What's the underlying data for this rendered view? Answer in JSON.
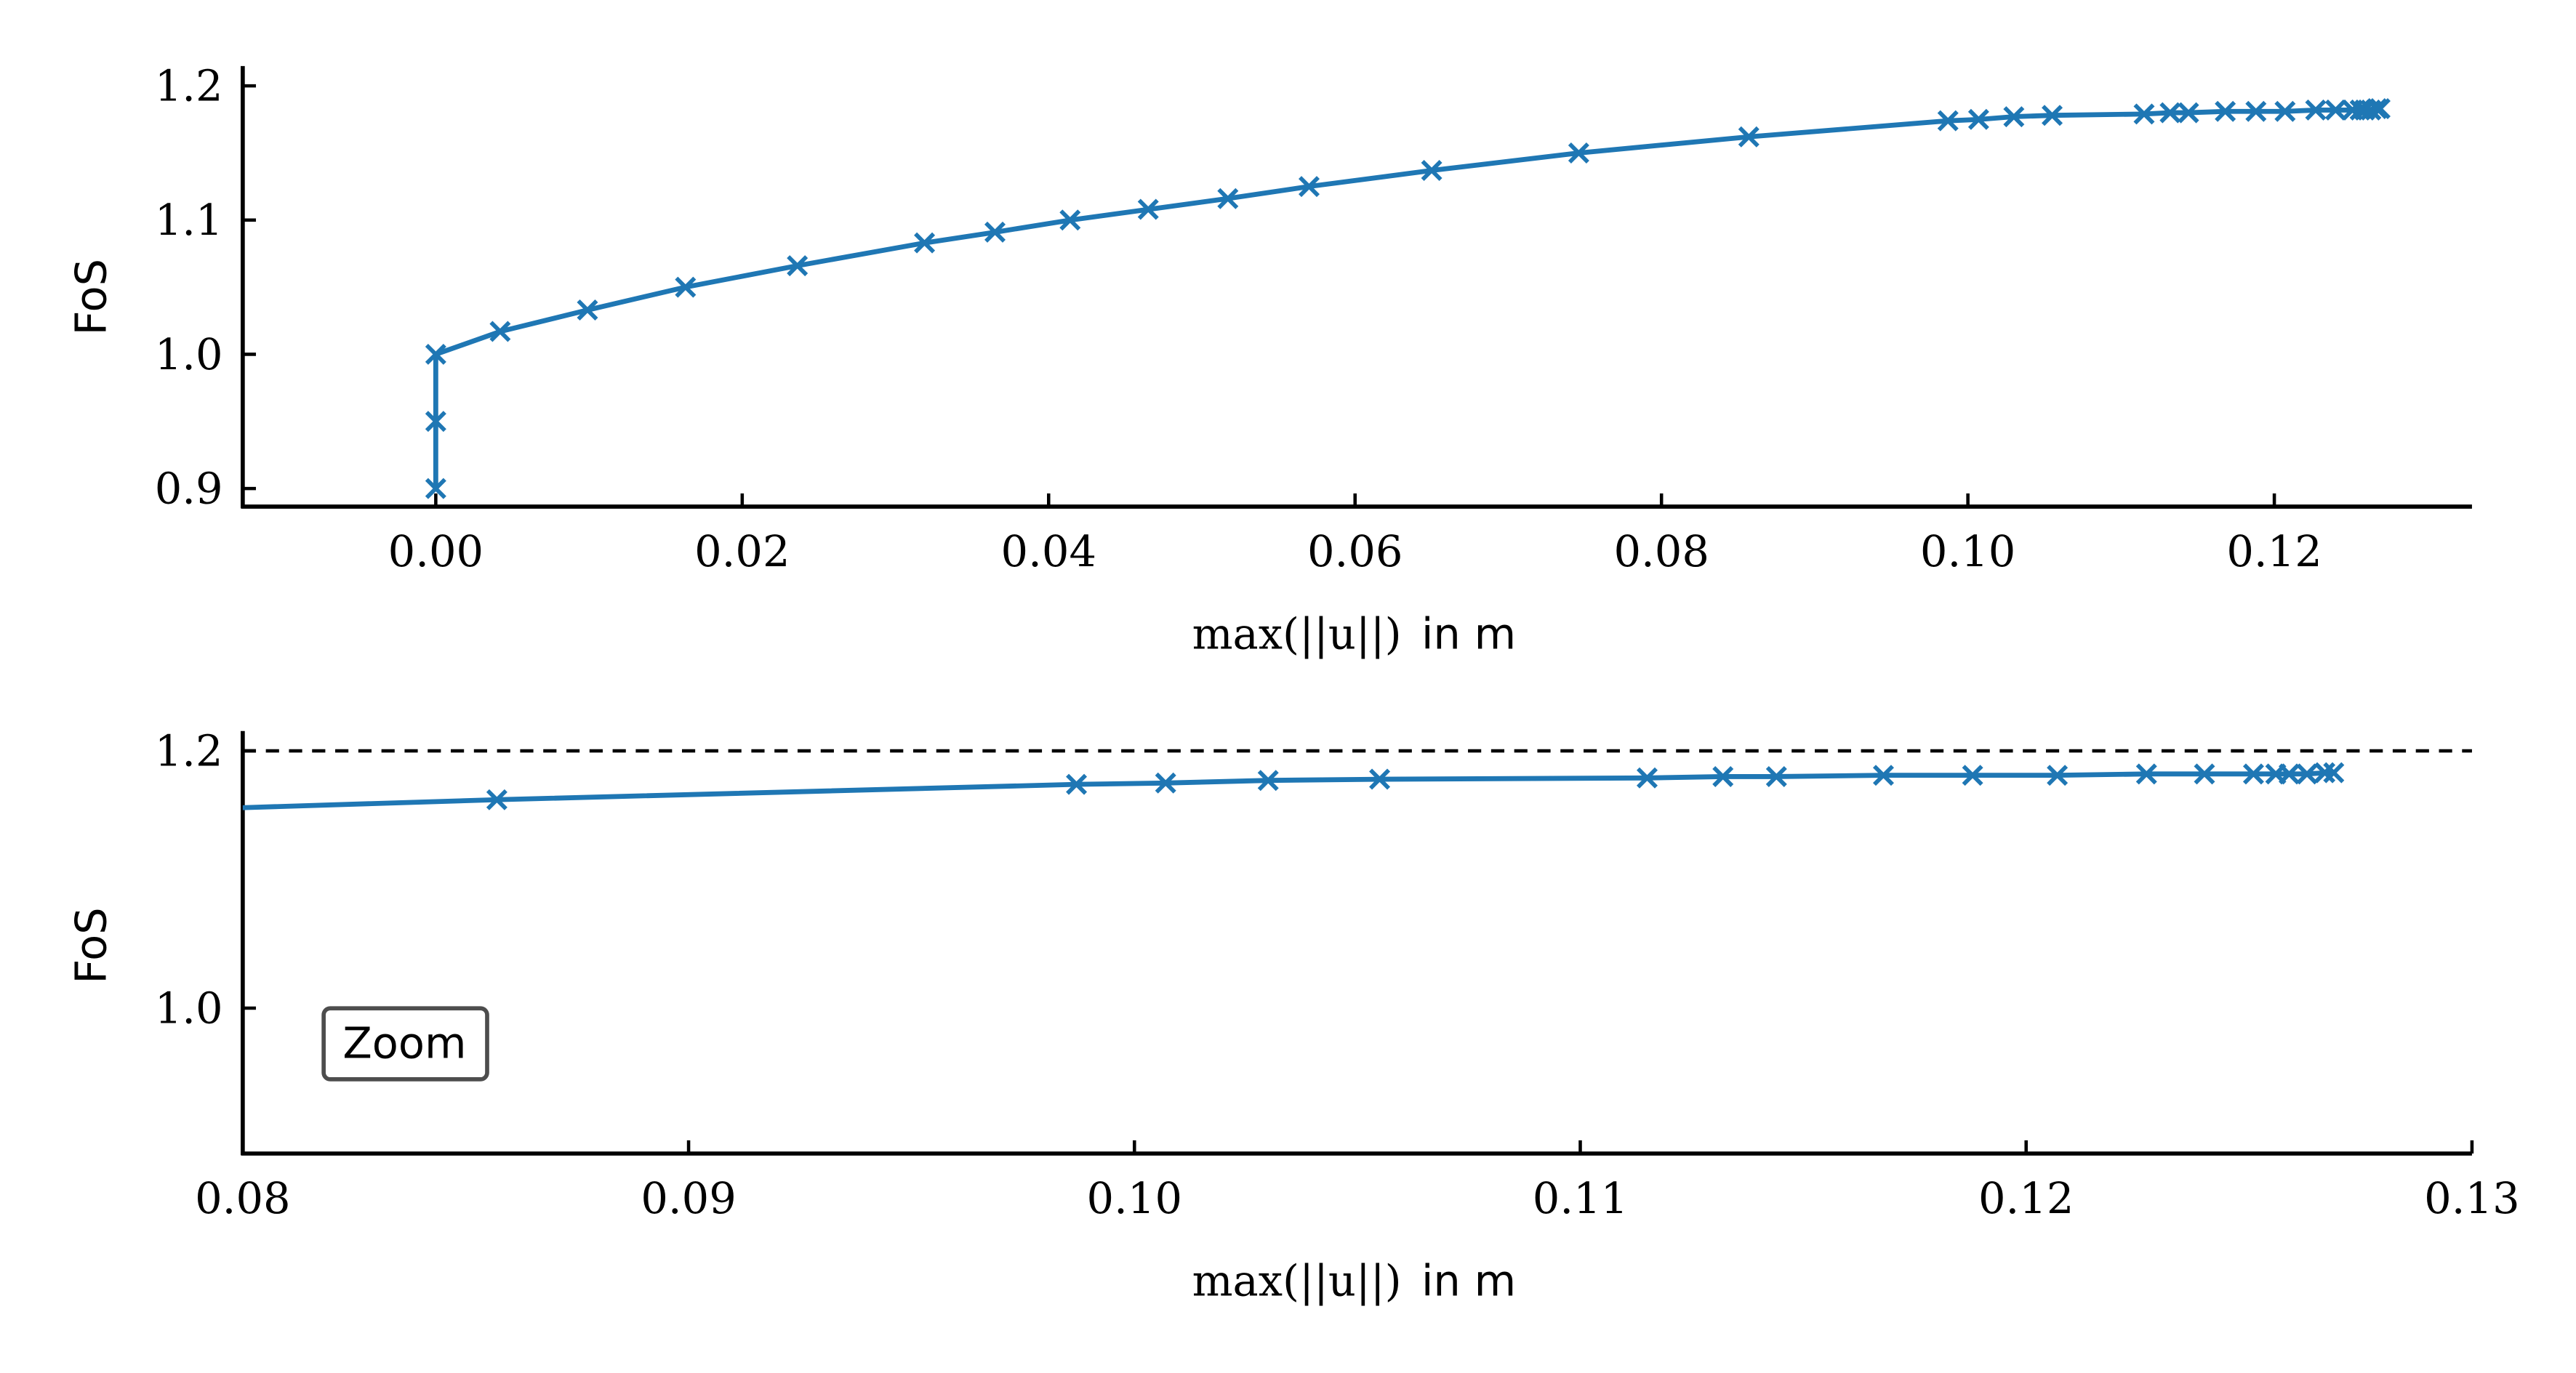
{
  "chart_data": [
    {
      "type": "line",
      "panel": "top",
      "xlabel": "max(||u||) in m",
      "ylabel": "FoS",
      "xlim": [
        -0.0126,
        0.1329
      ],
      "ylim": [
        0.8865,
        1.2025
      ],
      "xticks": [
        0.0,
        0.02,
        0.04,
        0.06,
        0.08,
        0.1,
        0.12
      ],
      "xtick_labels": [
        "0.00",
        "0.02",
        "0.04",
        "0.06",
        "0.08",
        "0.10",
        "0.12"
      ],
      "yticks": [
        0.9,
        1.0,
        1.1,
        1.2
      ],
      "ytick_labels": [
        "0.9",
        "1.0",
        "1.1",
        "1.2"
      ],
      "grid": false,
      "series": [
        {
          "name": "FoS",
          "color": "#1f77b4",
          "marker": "x"
        }
      ]
    },
    {
      "type": "line",
      "panel": "bottom",
      "xlabel": "max(||u||) in m",
      "ylabel": "FoS",
      "xlim": [
        0.08,
        0.13
      ],
      "ylim": [
        0.887,
        1.2154
      ],
      "xticks": [
        0.08,
        0.09,
        0.1,
        0.11,
        0.12,
        0.13
      ],
      "xtick_labels": [
        "0.08",
        "0.09",
        "0.10",
        "0.11",
        "0.12",
        "0.13"
      ],
      "yticks": [
        1.0,
        1.2
      ],
      "ytick_labels": [
        "1.0",
        "1.2"
      ],
      "hline": {
        "y": 1.2,
        "style": "dashed",
        "color": "#000000"
      },
      "annotation": "Zoom",
      "grid": false,
      "series": [
        {
          "name": "FoS",
          "color": "#1f77b4",
          "marker": "x"
        }
      ]
    }
  ],
  "series_data": {
    "x": [
      0,
      0,
      0,
      0.0042,
      0.0099,
      0.0163,
      0.0236,
      0.0319,
      0.0365,
      0.0414,
      0.0465,
      0.0517,
      0.057,
      0.065,
      0.0746,
      0.0857,
      0.0987,
      0.1007,
      0.103,
      0.1055,
      0.1115,
      0.1132,
      0.1144,
      0.1168,
      0.1188,
      0.1207,
      0.1227,
      0.124,
      0.1251,
      0.1256,
      0.1259,
      0.1263,
      0.1267,
      0.1269
    ],
    "y": [
      0.9,
      0.95,
      1.0,
      1.017,
      1.033,
      1.05,
      1.066,
      1.083,
      1.091,
      1.1,
      1.108,
      1.116,
      1.125,
      1.137,
      1.15,
      1.162,
      1.174,
      1.175,
      1.177,
      1.178,
      1.179,
      1.18,
      1.18,
      1.181,
      1.181,
      1.181,
      1.182,
      1.182,
      1.182,
      1.182,
      1.182,
      1.182,
      1.183,
      1.183
    ]
  },
  "labels": {
    "xlabel_math": "max(||u||)",
    "xlabel_unit": "in m",
    "ylabel": "FoS",
    "zoom": "Zoom"
  }
}
